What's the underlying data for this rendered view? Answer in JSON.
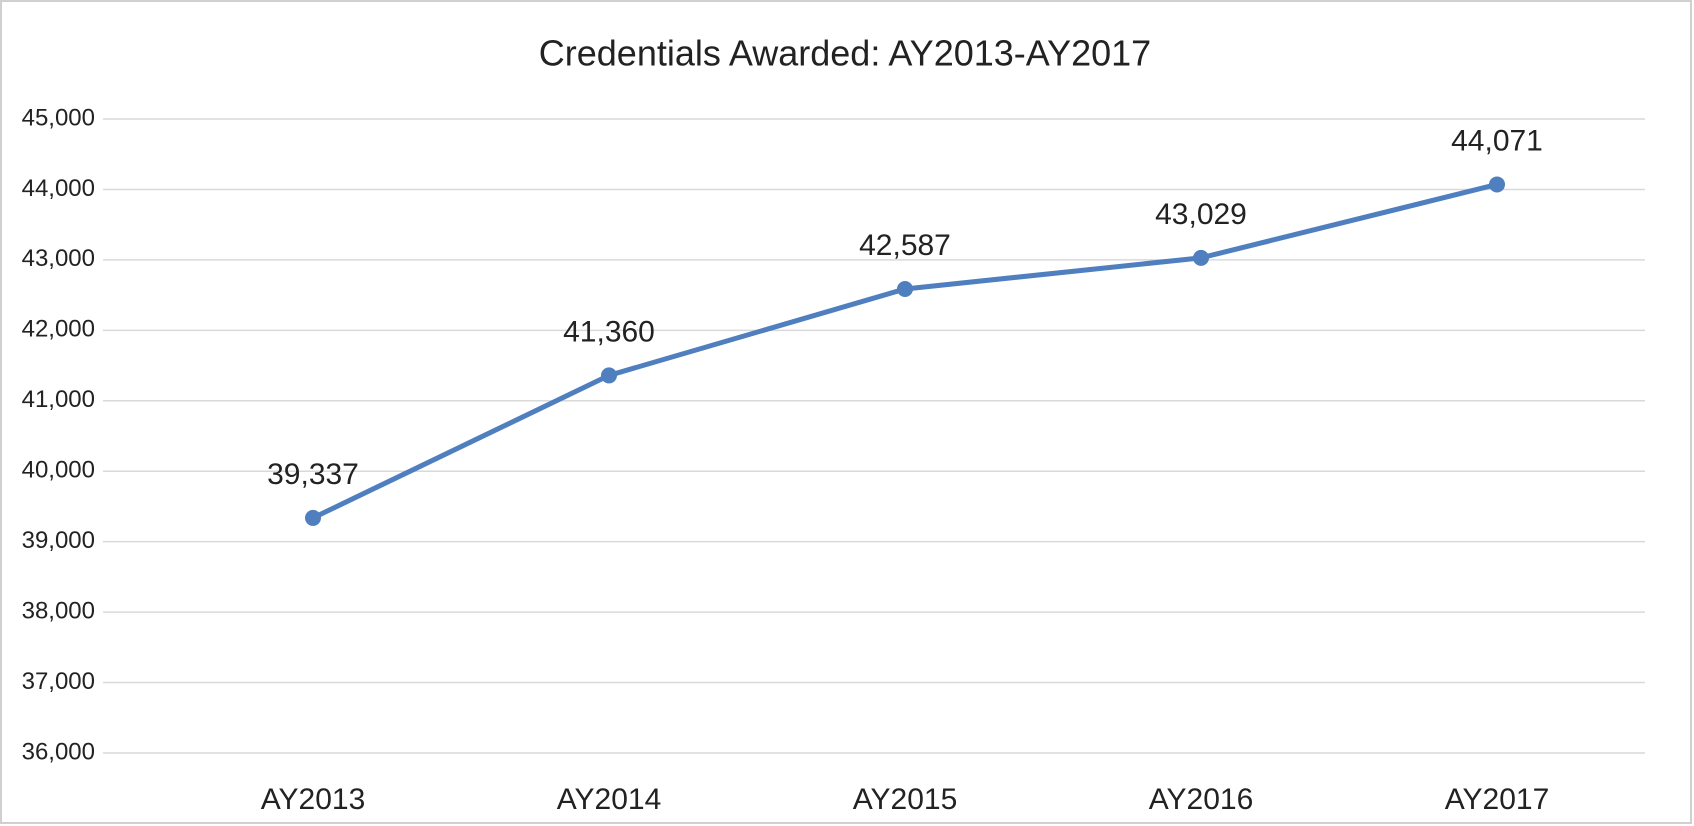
{
  "chart_data": {
    "type": "line",
    "title": "Credentials Awarded: AY2013-AY2017",
    "categories": [
      "AY2013",
      "AY2014",
      "AY2015",
      "AY2016",
      "AY2017"
    ],
    "series": [
      {
        "name": "Credentials Awarded",
        "color": "#4f7fbf",
        "values": [
          39337,
          41360,
          42587,
          43029,
          44071
        ],
        "value_labels": [
          "39,337",
          "41,360",
          "42,587",
          "43,029",
          "44,071"
        ]
      }
    ],
    "ylim": [
      36000,
      45000
    ],
    "yticks": [
      {
        "value": 36000,
        "label": "36,000"
      },
      {
        "value": 37000,
        "label": "37,000"
      },
      {
        "value": 38000,
        "label": "38,000"
      },
      {
        "value": 39000,
        "label": "39,000"
      },
      {
        "value": 40000,
        "label": "40,000"
      },
      {
        "value": 41000,
        "label": "41,000"
      },
      {
        "value": 42000,
        "label": "42,000"
      },
      {
        "value": 43000,
        "label": "43,000"
      },
      {
        "value": 44000,
        "label": "44,000"
      },
      {
        "value": 45000,
        "label": "45,000"
      }
    ],
    "grid": true
  }
}
